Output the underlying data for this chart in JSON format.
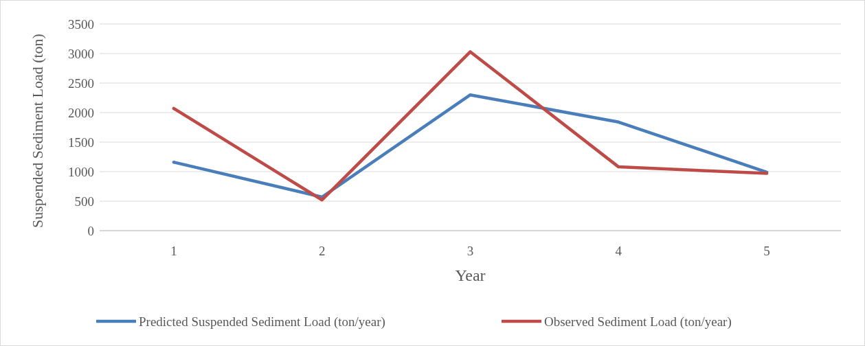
{
  "chart_data": {
    "type": "line",
    "xlabel": "Year",
    "ylabel": "Suspended Sediment Load (ton)",
    "categories": [
      "1",
      "2",
      "3",
      "4",
      "5"
    ],
    "series": [
      {
        "name": "Predicted Suspended Sediment Load (ton/year)",
        "color": "#4a7ebb",
        "values": [
          1160,
          570,
          2300,
          1840,
          990
        ]
      },
      {
        "name": "Observed Sediment Load (ton/year)",
        "color": "#be4b48",
        "values": [
          2070,
          520,
          3030,
          1080,
          970
        ]
      }
    ],
    "ylim": [
      0,
      3500
    ],
    "yticks": [
      0,
      500,
      1000,
      1500,
      2000,
      2500,
      3000,
      3500
    ],
    "grid": "y",
    "legend": "bottom",
    "marker": "none",
    "line_style": "solid"
  }
}
